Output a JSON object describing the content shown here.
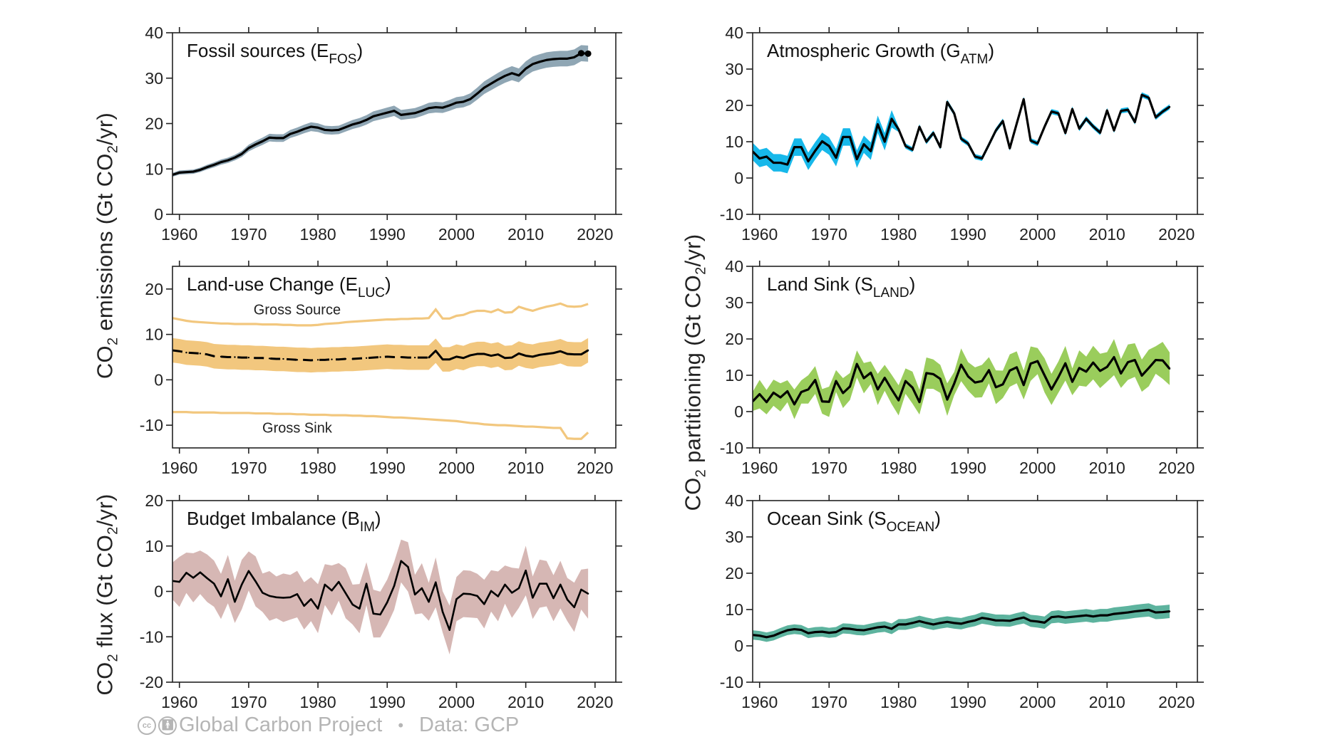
{
  "figure": {
    "ylabels": {
      "emissions": {
        "main": "CO",
        "sub": "2",
        "rest": " emissions (Gt CO",
        "sub2": "2",
        "end": "/yr)"
      },
      "flux": {
        "main": "CO",
        "sub": "2",
        "rest": " flux (Gt CO",
        "sub2": "2",
        "end": "/yr)"
      },
      "partitioning": {
        "main": "CO",
        "sub": "2",
        "rest": " partitioning (Gt CO",
        "sub2": "2",
        "end": "/yr)"
      }
    },
    "footer": {
      "cc_icon": "cc-icon",
      "by_icon": "attribution-icon",
      "publisher": "Global Carbon Project",
      "separator": "•",
      "source": "Data: GCP"
    }
  },
  "chart_data": [
    {
      "id": "fossil",
      "type": "line",
      "title": "Fossil sources (E",
      "title_sub": "FOS",
      "title_end": ")",
      "xlabel": "",
      "ylabel": "",
      "xlim": [
        1959,
        2023
      ],
      "ylim": [
        0,
        40
      ],
      "xticks": [
        1960,
        1970,
        1980,
        1990,
        2000,
        2010,
        2020
      ],
      "yticks": [
        0,
        10,
        20,
        30,
        40
      ],
      "band_color": "#8fa6b4",
      "line_color": "#000000",
      "end_markers": [
        2018,
        2019
      ],
      "x_start": 1959,
      "values": [
        8.7,
        9.2,
        9.3,
        9.4,
        9.8,
        10.4,
        10.9,
        11.5,
        11.9,
        12.5,
        13.3,
        14.6,
        15.4,
        16.1,
        16.9,
        16.8,
        16.8,
        17.7,
        18.2,
        18.8,
        19.3,
        19.1,
        18.6,
        18.5,
        18.6,
        19.2,
        19.8,
        20.2,
        20.8,
        21.6,
        22.0,
        22.4,
        22.8,
        21.9,
        22.1,
        22.3,
        22.8,
        23.4,
        23.6,
        23.5,
        24.0,
        24.6,
        24.8,
        25.4,
        26.6,
        27.9,
        28.8,
        29.7,
        30.5,
        31.1,
        30.6,
        32.1,
        33.1,
        33.6,
        34.0,
        34.2,
        34.3,
        34.3,
        34.6,
        35.5,
        35.4
      ],
      "uncertainty_fraction": 0.05
    },
    {
      "id": "luc",
      "type": "line",
      "title": "Land-use Change (E",
      "title_sub": "LUC",
      "title_end": ")",
      "xlabel": "",
      "ylabel": "",
      "xlim": [
        1959,
        2023
      ],
      "ylim": [
        -15,
        25
      ],
      "xticks": [
        1960,
        1970,
        1980,
        1990,
        2000,
        2010,
        2020
      ],
      "yticks": [
        -10,
        0,
        10,
        20
      ],
      "band_color": "#f2c77e",
      "gross_color": "#f2c77e",
      "line_color": "#000000",
      "dashed_until": 1996,
      "annotations": [
        {
          "text": "Gross Source",
          "x": 1977,
          "y": 15.5
        },
        {
          "text": "Gross Sink",
          "x": 1977,
          "y": -10.5
        }
      ],
      "x_start": 1959,
      "net": [
        6.5,
        6.3,
        6.0,
        5.9,
        5.8,
        5.6,
        5.2,
        5.1,
        5.0,
        5.0,
        4.9,
        4.9,
        4.8,
        4.8,
        4.7,
        4.6,
        4.6,
        4.5,
        4.4,
        4.4,
        4.3,
        4.4,
        4.4,
        4.5,
        4.5,
        4.6,
        4.6,
        4.7,
        4.8,
        4.9,
        5.0,
        5.1,
        5.0,
        5.0,
        4.9,
        4.9,
        4.9,
        4.9,
        6.4,
        4.5,
        4.5,
        5.1,
        4.8,
        5.4,
        5.7,
        5.7,
        5.3,
        5.6,
        4.8,
        4.9,
        5.8,
        5.3,
        5.1,
        5.5,
        5.7,
        5.9,
        6.3,
        5.7,
        5.6,
        5.6,
        6.5
      ],
      "net_uncertainty": 2.7,
      "gross_source": [
        13.6,
        13.3,
        13.0,
        12.8,
        12.7,
        12.6,
        12.5,
        12.4,
        12.4,
        12.3,
        12.3,
        12.3,
        12.3,
        12.2,
        12.2,
        12.2,
        12.1,
        12.1,
        12.0,
        12.0,
        12.0,
        12.1,
        12.3,
        12.4,
        12.5,
        12.7,
        12.8,
        12.9,
        13.0,
        13.1,
        13.2,
        13.3,
        13.3,
        13.4,
        13.4,
        13.5,
        13.5,
        13.6,
        15.5,
        13.5,
        13.5,
        14.1,
        14.3,
        14.9,
        15.2,
        15.2,
        14.9,
        15.5,
        14.8,
        14.9,
        16.1,
        15.6,
        15.2,
        15.7,
        16.1,
        16.4,
        16.8,
        16.2,
        16.1,
        16.2,
        16.7
      ],
      "gross_sink": [
        -7.1,
        -7.1,
        -7.1,
        -7.2,
        -7.2,
        -7.2,
        -7.2,
        -7.3,
        -7.3,
        -7.3,
        -7.3,
        -7.3,
        -7.4,
        -7.4,
        -7.4,
        -7.5,
        -7.5,
        -7.5,
        -7.6,
        -7.6,
        -7.7,
        -7.7,
        -7.7,
        -7.8,
        -7.8,
        -7.8,
        -7.9,
        -7.9,
        -8.0,
        -8.0,
        -8.1,
        -8.2,
        -8.3,
        -8.3,
        -8.4,
        -8.5,
        -8.6,
        -8.7,
        -8.8,
        -8.9,
        -9.0,
        -9.1,
        -9.3,
        -9.5,
        -9.6,
        -9.8,
        -9.9,
        -10.0,
        -10.0,
        -10.1,
        -10.2,
        -10.3,
        -10.3,
        -10.4,
        -10.5,
        -10.6,
        -10.6,
        -12.9,
        -13.0,
        -13.0,
        -11.6
      ]
    },
    {
      "id": "bim",
      "type": "line",
      "title": "Budget Imbalance (B",
      "title_sub": "IM",
      "title_end": ")",
      "xlabel": "",
      "ylabel": "",
      "xlim": [
        1959,
        2023
      ],
      "ylim": [
        -20,
        20
      ],
      "xticks": [
        1960,
        1970,
        1980,
        1990,
        2000,
        2010,
        2020
      ],
      "yticks": [
        -20,
        -10,
        0,
        10,
        20
      ],
      "band_color": "#d6b7b4",
      "line_color": "#000000",
      "x_start": 1959,
      "values": [
        2.3,
        2.1,
        4.1,
        3.0,
        4.2,
        2.9,
        1.7,
        -1.1,
        2.7,
        -2.3,
        1.5,
        4.5,
        2.2,
        -0.3,
        -1.0,
        -1.3,
        -1.4,
        -1.3,
        -0.6,
        -3.2,
        -1.7,
        -3.8,
        1.5,
        0.2,
        2.1,
        -0.4,
        -2.9,
        -3.8,
        1.7,
        -4.9,
        -5.1,
        -2.4,
        1.2,
        6.7,
        5.4,
        -0.7,
        0.7,
        -2.3,
        2.0,
        -4.5,
        -8.5,
        -1.7,
        -0.5,
        -0.6,
        -1.0,
        -2.8,
        0.1,
        -1.1,
        1.5,
        -0.3,
        0.7,
        4.6,
        -1.4,
        1.7,
        1.7,
        -1.5,
        1.5,
        -1.8,
        -3.5,
        0.4,
        -0.5
      ],
      "uncertainty": 4.8
    },
    {
      "id": "atm",
      "type": "line",
      "title": "Atmospheric Growth (G",
      "title_sub": "ATM",
      "title_end": ")",
      "xlabel": "",
      "ylabel": "",
      "xlim": [
        1959,
        2023
      ],
      "ylim": [
        -10,
        40
      ],
      "xticks": [
        1960,
        1970,
        1980,
        1990,
        2000,
        2010,
        2020
      ],
      "yticks": [
        -10,
        0,
        10,
        20,
        30,
        40
      ],
      "band_color": "#17b8ea",
      "line_color": "#000000",
      "x_start": 1959,
      "values": [
        7.3,
        5.4,
        5.9,
        4.2,
        4.2,
        3.7,
        8.5,
        8.5,
        4.6,
        7.5,
        10.1,
        8.8,
        5.6,
        11.3,
        11.3,
        5.2,
        9.3,
        7.4,
        14.8,
        10.0,
        16.3,
        13.4,
        8.8,
        7.8,
        14.1,
        10.0,
        12.4,
        8.5,
        20.9,
        17.8,
        10.8,
        9.5,
        5.9,
        5.4,
        9.2,
        13.1,
        15.7,
        8.2,
        15.0,
        21.7,
        10.3,
        9.5,
        14.1,
        18.3,
        17.8,
        12.4,
        19.0,
        13.6,
        16.3,
        14.2,
        12.5,
        18.6,
        13.1,
        18.5,
        18.8,
        15.4,
        22.9,
        22.1,
        16.7,
        18.3,
        19.6
      ],
      "uncertainty_early": 2.4,
      "uncertainty_late": 0.7,
      "uncertainty_switch_year": 1980
    },
    {
      "id": "land",
      "type": "line",
      "title": "Land Sink (S",
      "title_sub": "LAND",
      "title_end": ")",
      "xlabel": "",
      "ylabel": "",
      "xlim": [
        1959,
        2023
      ],
      "ylim": [
        -10,
        40
      ],
      "xticks": [
        1960,
        1970,
        1980,
        1990,
        2000,
        2010,
        2020
      ],
      "yticks": [
        -10,
        0,
        10,
        20,
        30,
        40
      ],
      "band_color": "#9acd5c",
      "line_color": "#000000",
      "x_start": 1959,
      "values": [
        2.8,
        4.8,
        2.6,
        5.2,
        3.9,
        5.6,
        2.0,
        5.4,
        6.1,
        8.7,
        2.8,
        2.7,
        8.4,
        5.1,
        6.9,
        13.1,
        9.2,
        10.7,
        6.1,
        9.3,
        6.1,
        3.1,
        8.4,
        6.6,
        2.6,
        10.6,
        10.3,
        9.0,
        3.3,
        7.7,
        12.9,
        9.7,
        8.0,
        8.4,
        11.4,
        6.7,
        7.5,
        11.3,
        12.2,
        7.3,
        13.2,
        13.9,
        10.0,
        6.1,
        9.5,
        13.3,
        8.2,
        12.0,
        11.0,
        13.5,
        11.2,
        12.3,
        15.0,
        10.5,
        13.6,
        14.2,
        9.9,
        12.0,
        14.2,
        14.1,
        11.8
      ],
      "uncertainty": 3.3
    },
    {
      "id": "ocean",
      "type": "line",
      "title": "Ocean Sink (S",
      "title_sub": "OCEAN",
      "title_end": ")",
      "xlabel": "",
      "ylabel": "",
      "xlim": [
        1959,
        2023
      ],
      "ylim": [
        -10,
        40
      ],
      "xticks": [
        1960,
        1970,
        1980,
        1990,
        2000,
        2010,
        2020
      ],
      "yticks": [
        -10,
        0,
        10,
        20,
        30,
        40
      ],
      "band_color": "#5db39e",
      "line_color": "#000000",
      "x_start": 1959,
      "values": [
        3.0,
        2.8,
        2.4,
        2.8,
        3.6,
        4.3,
        4.6,
        4.4,
        3.5,
        3.8,
        3.9,
        3.6,
        3.8,
        4.8,
        4.7,
        4.4,
        4.3,
        4.7,
        5.1,
        5.3,
        4.7,
        5.9,
        5.9,
        6.3,
        6.8,
        6.3,
        5.9,
        6.3,
        6.6,
        6.3,
        6.1,
        6.6,
        7.0,
        7.7,
        7.4,
        7.0,
        7.0,
        6.9,
        7.4,
        7.8,
        6.9,
        6.7,
        6.4,
        7.9,
        8.1,
        7.8,
        8.0,
        8.2,
        8.4,
        8.1,
        8.4,
        8.4,
        8.8,
        9.0,
        9.2,
        9.5,
        9.7,
        9.9,
        9.2,
        9.3,
        9.5
      ],
      "uncertainty": 1.6
    }
  ]
}
